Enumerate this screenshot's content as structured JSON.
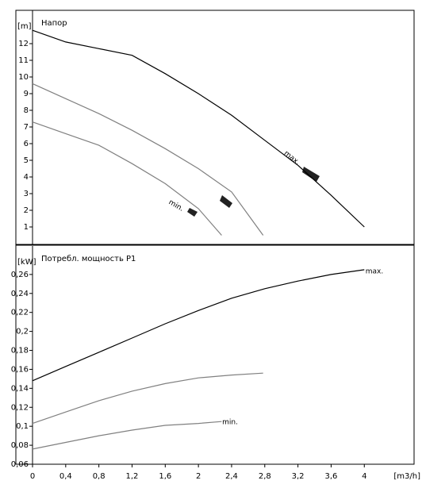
{
  "chart_data": [
    {
      "type": "line",
      "title": "Напор",
      "y_label": "[m]",
      "xlim": [
        0,
        4.6
      ],
      "ylim": [
        0,
        14
      ],
      "yticks": [
        1,
        2,
        3,
        4,
        5,
        6,
        7,
        8,
        9,
        10,
        11,
        12
      ],
      "series": [
        {
          "name": "max.",
          "color": "#000000",
          "x": [
            0,
            0.4,
            0.8,
            1.2,
            1.6,
            2.0,
            2.4,
            2.8,
            3.2,
            3.6,
            4.0
          ],
          "values": [
            12.8,
            12.1,
            11.7,
            11.3,
            10.2,
            9.0,
            7.7,
            6.2,
            4.7,
            2.9,
            1.0
          ]
        },
        {
          "color": "#808080",
          "x": [
            0,
            0.4,
            0.8,
            1.2,
            1.6,
            2.0,
            2.4,
            2.78
          ],
          "values": [
            9.6,
            8.7,
            7.8,
            6.8,
            5.7,
            4.5,
            3.1,
            0.5
          ]
        },
        {
          "name": "min.",
          "color": "#808080",
          "x": [
            0,
            0.4,
            0.8,
            1.2,
            1.6,
            2.0,
            2.28
          ],
          "values": [
            7.3,
            6.6,
            5.9,
            4.8,
            3.6,
            2.1,
            0.5
          ]
        }
      ]
    },
    {
      "type": "line",
      "title": "Потребл. мощность P1",
      "y_label": "[kW]",
      "x_label": "[m3/h]",
      "xlim": [
        0,
        4.6
      ],
      "ylim": [
        0.06,
        0.29
      ],
      "yticks": [
        {
          "value": 0.06,
          "label": "0,06"
        },
        {
          "value": 0.08,
          "label": "0,08"
        },
        {
          "value": 0.1,
          "label": "0,1"
        },
        {
          "value": 0.12,
          "label": "0,12"
        },
        {
          "value": 0.14,
          "label": "0,14"
        },
        {
          "value": 0.16,
          "label": "0,16"
        },
        {
          "value": 0.18,
          "label": "0,18"
        },
        {
          "value": 0.2,
          "label": "0,2"
        },
        {
          "value": 0.22,
          "label": "0,22"
        },
        {
          "value": 0.24,
          "label": "0,24"
        },
        {
          "value": 0.26,
          "label": "0,26"
        }
      ],
      "xticks": [
        0,
        {
          "value": 0.4,
          "label": "0,4"
        },
        {
          "value": 0.8,
          "label": "0,8"
        },
        {
          "value": 1.2,
          "label": "1,2"
        },
        {
          "value": 1.6,
          "label": "1,6"
        },
        2,
        {
          "value": 2.4,
          "label": "2,4"
        },
        {
          "value": 2.8,
          "label": "2,8"
        },
        {
          "value": 3.2,
          "label": "3,2"
        },
        {
          "value": 3.6,
          "label": "3,6"
        },
        4
      ],
      "series": [
        {
          "name": "max.",
          "color": "#000000",
          "x": [
            0,
            0.4,
            0.8,
            1.2,
            1.6,
            2.0,
            2.4,
            2.8,
            3.2,
            3.6,
            4.0
          ],
          "values": [
            0.148,
            0.163,
            0.178,
            0.193,
            0.208,
            0.222,
            0.235,
            0.245,
            0.253,
            0.26,
            0.265
          ]
        },
        {
          "color": "#808080",
          "x": [
            0,
            0.4,
            0.8,
            1.2,
            1.6,
            2.0,
            2.4,
            2.78
          ],
          "values": [
            0.103,
            0.115,
            0.127,
            0.137,
            0.145,
            0.151,
            0.154,
            0.156
          ]
        },
        {
          "name": "min.",
          "color": "#808080",
          "x": [
            0,
            0.4,
            0.8,
            1.2,
            1.6,
            2.0,
            2.28
          ],
          "values": [
            0.076,
            0.083,
            0.09,
            0.096,
            0.101,
            0.103,
            0.105
          ]
        }
      ]
    }
  ]
}
